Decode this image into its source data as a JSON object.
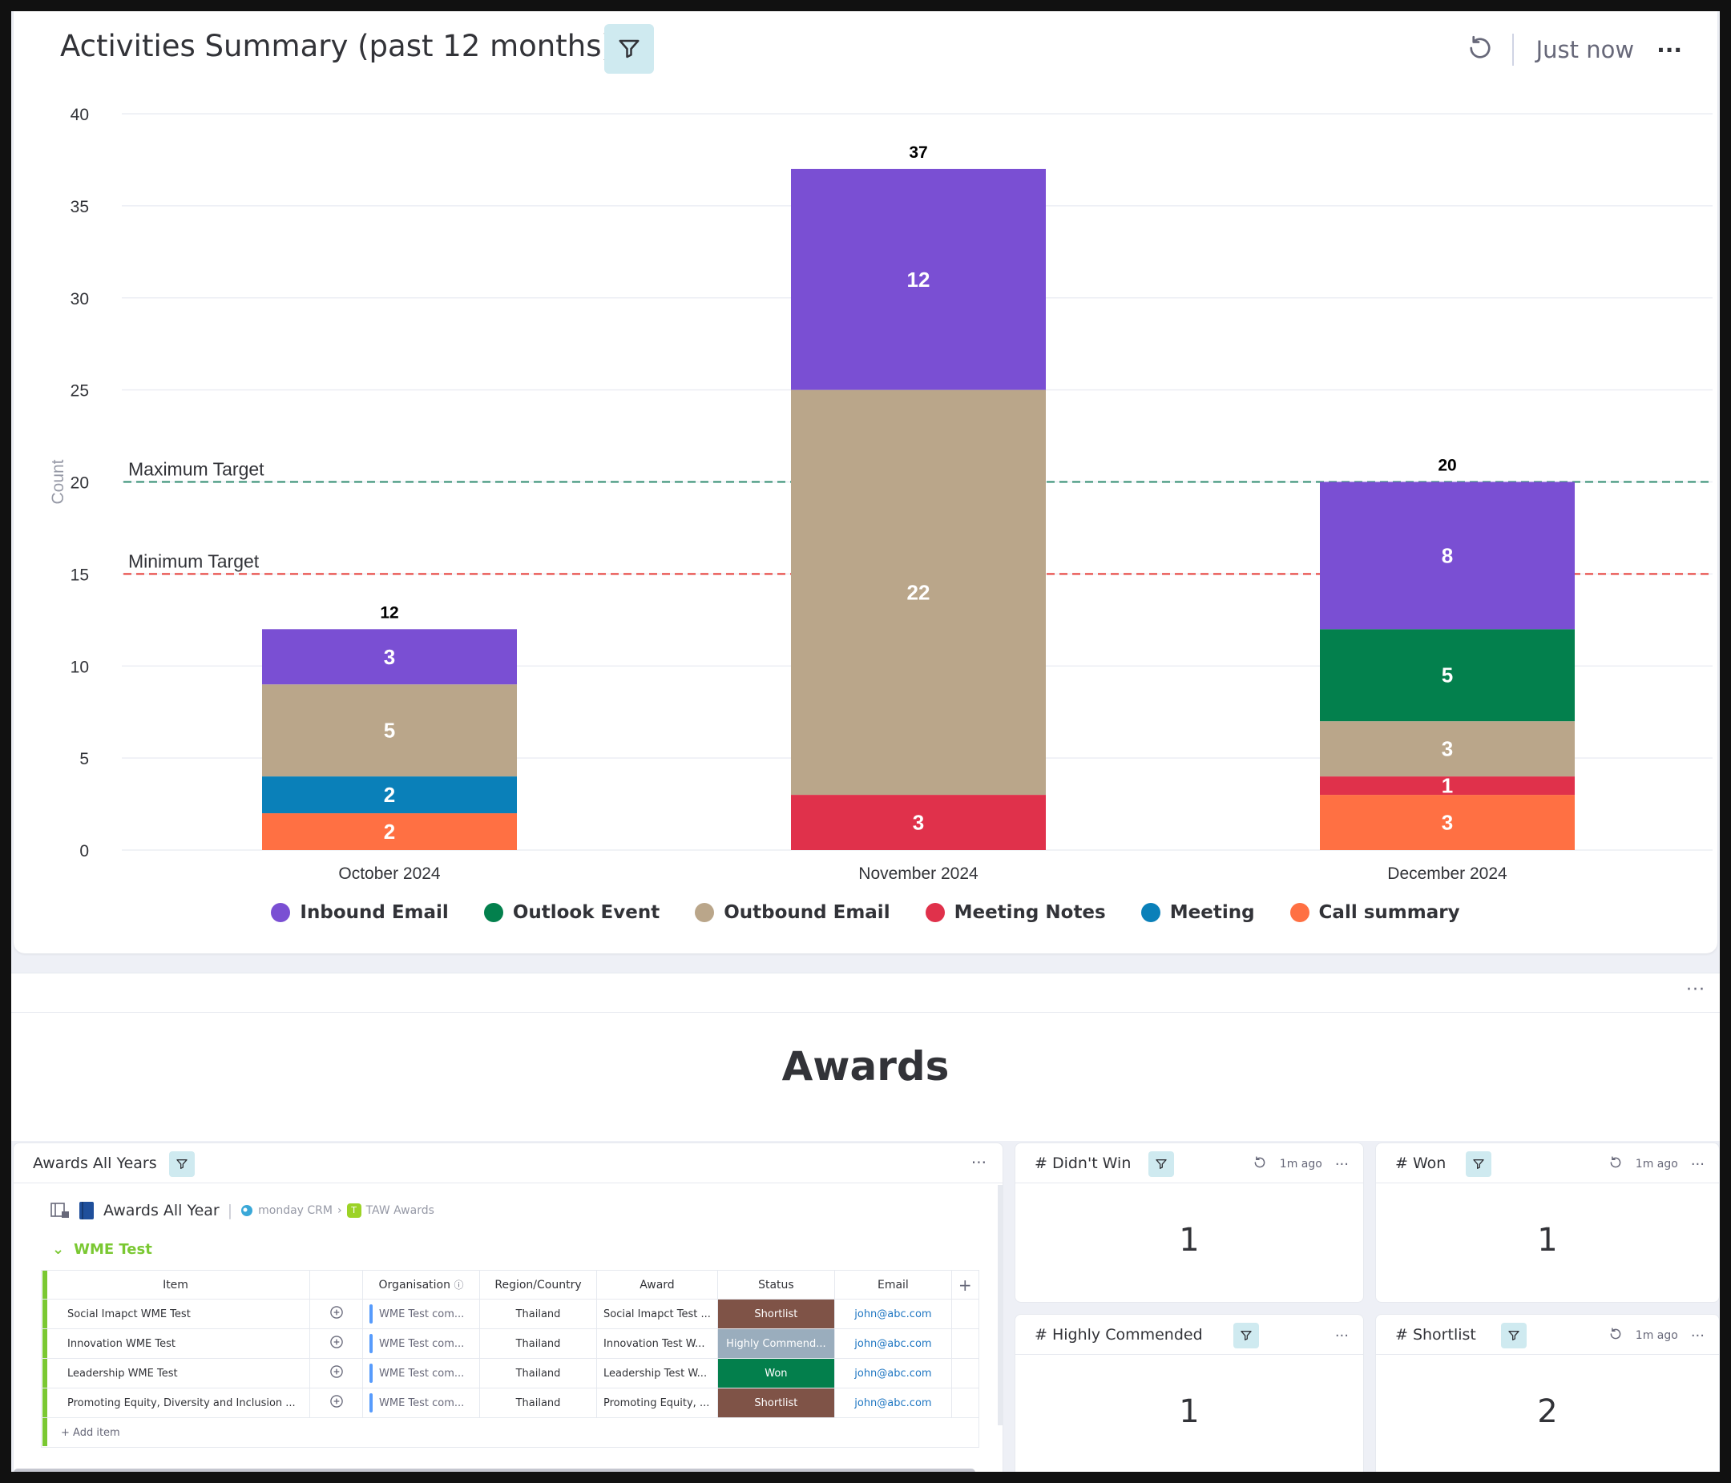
{
  "chart_card": {
    "title": "Activities Summary (past 12 months)",
    "updated": "Just now",
    "more": "···"
  },
  "chart_data": {
    "type": "bar",
    "stacked": true,
    "categories": [
      "October 2024",
      "November 2024",
      "December 2024"
    ],
    "series": [
      {
        "name": "Call summary",
        "color": "#ff7043",
        "values": [
          2,
          0,
          3
        ]
      },
      {
        "name": "Meeting",
        "color": "#0a80b9",
        "values": [
          2,
          0,
          0
        ]
      },
      {
        "name": "Meeting Notes",
        "color": "#e0314b",
        "values": [
          0,
          3,
          1
        ]
      },
      {
        "name": "Outbound Email",
        "color": "#baa68a",
        "values": [
          5,
          22,
          3
        ]
      },
      {
        "name": "Outlook Event",
        "color": "#03804d",
        "values": [
          0,
          0,
          5
        ]
      },
      {
        "name": "Inbound Email",
        "color": "#7a4fd3",
        "values": [
          3,
          12,
          8
        ]
      }
    ],
    "totals": [
      12,
      37,
      20
    ],
    "ylabel": "Count",
    "ylim": [
      0,
      40
    ],
    "yticks": [
      0,
      5,
      10,
      15,
      20,
      25,
      30,
      35,
      40
    ],
    "reference_lines": [
      {
        "label": "Maximum Target",
        "value": 20,
        "color": "#2e8b6f"
      },
      {
        "label": "Minimum Target",
        "value": 15,
        "color": "#e53935"
      }
    ],
    "grid": true,
    "legend_position": "bottom"
  },
  "legend": [
    {
      "label": "Inbound Email",
      "color": "#7a4fd3"
    },
    {
      "label": "Outlook Event",
      "color": "#03804d"
    },
    {
      "label": "Outbound Email",
      "color": "#baa68a"
    },
    {
      "label": "Meeting Notes",
      "color": "#e0314b"
    },
    {
      "label": "Meeting",
      "color": "#0a80b9"
    },
    {
      "label": "Call summary",
      "color": "#ff7043"
    }
  ],
  "section": {
    "more": "···",
    "heading": "Awards"
  },
  "table_widget": {
    "title": "Awards All Years",
    "more": "···",
    "board_name": "Awards All Year",
    "crumb_workspace": "monday CRM",
    "crumb_folder": "TAW Awards",
    "group_name": "WME Test",
    "columns": [
      "Item",
      "Organisation",
      "Region/Country",
      "Award",
      "Status",
      "Email"
    ],
    "rows": [
      {
        "item": "Social Imapct WME Test",
        "org": "WME Test com...",
        "region": "Thailand",
        "award": "Social Imapct Test ...",
        "status": "Shortlist",
        "status_color": "#7f5347",
        "email": "john@abc.com"
      },
      {
        "item": "Innovation WME Test",
        "org": "WME Test com...",
        "region": "Thailand",
        "award": "Innovation Test W...",
        "status": "Highly Commend...",
        "status_color": "#9aadbd",
        "email": "john@abc.com"
      },
      {
        "item": "Leadership WME Test",
        "org": "WME Test com...",
        "region": "Thailand",
        "award": "Leadership Test W...",
        "status": "Won",
        "status_color": "#037f4c",
        "email": "john@abc.com"
      },
      {
        "item": "Promoting Equity, Diversity and Inclusion ...",
        "org": "WME Test com...",
        "region": "Thailand",
        "award": "Promoting Equity, ...",
        "status": "Shortlist",
        "status_color": "#7f5347",
        "email": "john@abc.com"
      }
    ],
    "add_item": "+ Add item",
    "add_column": "+"
  },
  "number_widgets": [
    {
      "title": "# Didn't Win",
      "time": "1m ago",
      "value": "1",
      "more": "···"
    },
    {
      "title": "# Won",
      "time": "1m ago",
      "value": "1",
      "more": "···"
    },
    {
      "title": "# Highly Commended",
      "time": "",
      "value": "1",
      "more": "···"
    },
    {
      "title": "# Shortlist",
      "time": "1m ago",
      "value": "2",
      "more": "···"
    }
  ]
}
